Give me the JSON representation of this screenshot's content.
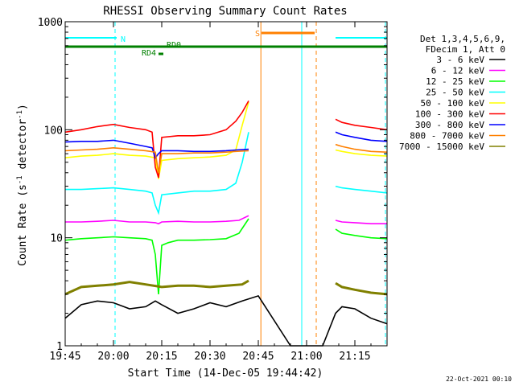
{
  "chart_data": {
    "type": "line",
    "title": "RHESSI Observing Summary Count Rates",
    "xlabel": "Start Time (14-Dec-05 19:44:42)",
    "ylabel_main": "Count Rate (s",
    "ylabel_sup1": "-1",
    "ylabel_mid": " detector",
    "ylabel_sup2": "-1",
    "ylabel_end": ")",
    "x_units": "minutes after 19:45 UT",
    "xlim": [
      0,
      100
    ],
    "ylim": [
      1,
      1000
    ],
    "yscale": "log",
    "x_ticks": [
      {
        "t": 0,
        "label": "19:45"
      },
      {
        "t": 15,
        "label": "20:00"
      },
      {
        "t": 30,
        "label": "20:15"
      },
      {
        "t": 45,
        "label": "20:30"
      },
      {
        "t": 60,
        "label": "20:45"
      },
      {
        "t": 75,
        "label": "21:00"
      },
      {
        "t": 90,
        "label": "21:15"
      }
    ],
    "y_ticks": [
      {
        "v": 1,
        "label": "1"
      },
      {
        "v": 10,
        "label": "10"
      },
      {
        "v": 100,
        "label": "100"
      },
      {
        "v": 1000,
        "label": "1000"
      }
    ],
    "legend_header": [
      "Det 1,3,4,5,6,9,",
      "FDecim 1, Att 0"
    ],
    "legend_position": "right",
    "series": [
      {
        "name": "3 - 6 keV",
        "color": "#000000",
        "values": [
          [
            0,
            1.8
          ],
          [
            5,
            2.4
          ],
          [
            10,
            2.6
          ],
          [
            15,
            2.5
          ],
          [
            20,
            2.2
          ],
          [
            25,
            2.3
          ],
          [
            28,
            2.6
          ],
          [
            30,
            2.4
          ],
          [
            35,
            2.0
          ],
          [
            40,
            2.2
          ],
          [
            45,
            2.5
          ],
          [
            50,
            2.3
          ],
          [
            55,
            2.6
          ],
          [
            60,
            2.9
          ],
          [
            70,
            1.0
          ],
          [
            80,
            1.0
          ],
          [
            84,
            2.0
          ],
          [
            86,
            2.3
          ],
          [
            90,
            2.2
          ],
          [
            95,
            1.8
          ],
          [
            100,
            1.6
          ]
        ]
      },
      {
        "name": "6 - 12 keV",
        "color": "#ff00ff",
        "values": [
          [
            0,
            14
          ],
          [
            5,
            14
          ],
          [
            10,
            14.2
          ],
          [
            15,
            14.5
          ],
          [
            20,
            14
          ],
          [
            25,
            14
          ],
          [
            28,
            13.8
          ],
          [
            29,
            13.5
          ],
          [
            30,
            14
          ],
          [
            35,
            14.2
          ],
          [
            40,
            14
          ],
          [
            45,
            14
          ],
          [
            50,
            14.2
          ],
          [
            54,
            14.5
          ],
          [
            57,
            16
          ],
          [
            84,
            14.5
          ],
          [
            86,
            14
          ],
          [
            90,
            13.8
          ],
          [
            95,
            13.5
          ],
          [
            100,
            13.5
          ]
        ]
      },
      {
        "name": "12 - 25 keV",
        "color": "#00ff00",
        "values": [
          [
            0,
            9.5
          ],
          [
            5,
            9.8
          ],
          [
            10,
            10
          ],
          [
            15,
            10.2
          ],
          [
            20,
            10
          ],
          [
            25,
            9.8
          ],
          [
            27,
            9.5
          ],
          [
            28,
            7
          ],
          [
            29,
            3
          ],
          [
            30,
            8.5
          ],
          [
            32,
            9
          ],
          [
            35,
            9.5
          ],
          [
            40,
            9.5
          ],
          [
            45,
            9.6
          ],
          [
            50,
            9.8
          ],
          [
            54,
            11
          ],
          [
            57,
            15
          ],
          [
            84,
            12
          ],
          [
            86,
            11
          ],
          [
            90,
            10.5
          ],
          [
            95,
            10
          ],
          [
            100,
            9.8
          ]
        ]
      },
      {
        "name": "25 - 50 keV",
        "color": "#00ffff",
        "values": [
          [
            0,
            28
          ],
          [
            5,
            28
          ],
          [
            10,
            28.5
          ],
          [
            15,
            29
          ],
          [
            20,
            28
          ],
          [
            25,
            27
          ],
          [
            27,
            26
          ],
          [
            28,
            20
          ],
          [
            29,
            17
          ],
          [
            30,
            25
          ],
          [
            35,
            26
          ],
          [
            40,
            27
          ],
          [
            45,
            27
          ],
          [
            50,
            28
          ],
          [
            53,
            32
          ],
          [
            55,
            50
          ],
          [
            57,
            95
          ],
          [
            84,
            30
          ],
          [
            86,
            29
          ],
          [
            90,
            28
          ],
          [
            95,
            27
          ],
          [
            100,
            26
          ]
        ]
      },
      {
        "name": "50 - 100 keV",
        "color": "#ffff00",
        "values": [
          [
            0,
            55
          ],
          [
            5,
            57
          ],
          [
            10,
            58
          ],
          [
            15,
            60
          ],
          [
            20,
            58
          ],
          [
            25,
            57
          ],
          [
            28,
            55
          ],
          [
            29,
            35
          ],
          [
            30,
            52
          ],
          [
            35,
            54
          ],
          [
            40,
            55
          ],
          [
            45,
            56
          ],
          [
            50,
            58
          ],
          [
            53,
            65
          ],
          [
            55,
            110
          ],
          [
            57,
            180
          ],
          [
            84,
            65
          ],
          [
            86,
            63
          ],
          [
            90,
            60
          ],
          [
            95,
            58
          ],
          [
            100,
            57
          ]
        ]
      },
      {
        "name": "100 - 300 keV",
        "color": "#ff0000",
        "values": [
          [
            0,
            95
          ],
          [
            5,
            100
          ],
          [
            10,
            107
          ],
          [
            15,
            112
          ],
          [
            20,
            105
          ],
          [
            25,
            100
          ],
          [
            27,
            95
          ],
          [
            28,
            45
          ],
          [
            29,
            36
          ],
          [
            30,
            85
          ],
          [
            35,
            88
          ],
          [
            40,
            88
          ],
          [
            45,
            90
          ],
          [
            50,
            100
          ],
          [
            53,
            120
          ],
          [
            55,
            145
          ],
          [
            57,
            185
          ],
          [
            84,
            125
          ],
          [
            86,
            117
          ],
          [
            90,
            110
          ],
          [
            95,
            105
          ],
          [
            100,
            100
          ]
        ]
      },
      {
        "name": "300 - 800 keV",
        "color": "#0000ff",
        "values": [
          [
            0,
            77
          ],
          [
            5,
            78
          ],
          [
            10,
            78
          ],
          [
            15,
            80
          ],
          [
            20,
            75
          ],
          [
            25,
            70
          ],
          [
            27,
            68
          ],
          [
            28,
            55
          ],
          [
            29,
            60
          ],
          [
            30,
            64
          ],
          [
            35,
            64
          ],
          [
            40,
            63
          ],
          [
            45,
            63
          ],
          [
            50,
            64
          ],
          [
            53,
            65
          ],
          [
            57,
            66
          ],
          [
            84,
            95
          ],
          [
            86,
            90
          ],
          [
            90,
            85
          ],
          [
            95,
            80
          ],
          [
            100,
            78
          ]
        ]
      },
      {
        "name": "800 - 7000 keV",
        "color": "#ff8000",
        "values": [
          [
            0,
            64
          ],
          [
            5,
            65
          ],
          [
            10,
            66
          ],
          [
            15,
            68
          ],
          [
            20,
            66
          ],
          [
            25,
            64
          ],
          [
            28,
            62
          ],
          [
            29,
            40
          ],
          [
            30,
            60
          ],
          [
            35,
            60
          ],
          [
            40,
            61
          ],
          [
            45,
            61
          ],
          [
            50,
            62
          ],
          [
            53,
            63
          ],
          [
            57,
            64
          ],
          [
            84,
            73
          ],
          [
            86,
            70
          ],
          [
            90,
            66
          ],
          [
            95,
            63
          ],
          [
            100,
            62
          ]
        ]
      },
      {
        "name": "7000 - 15000 keV",
        "color": "#808000",
        "values": [
          [
            0,
            3.0
          ],
          [
            5,
            3.5
          ],
          [
            10,
            3.6
          ],
          [
            15,
            3.7
          ],
          [
            20,
            3.9
          ],
          [
            25,
            3.7
          ],
          [
            30,
            3.5
          ],
          [
            35,
            3.6
          ],
          [
            40,
            3.6
          ],
          [
            45,
            3.5
          ],
          [
            50,
            3.6
          ],
          [
            55,
            3.7
          ],
          [
            57,
            4.0
          ],
          [
            84,
            3.8
          ],
          [
            86,
            3.5
          ],
          [
            90,
            3.3
          ],
          [
            95,
            3.1
          ],
          [
            100,
            3.0
          ]
        ]
      }
    ],
    "flag_bars": [
      {
        "label": "N",
        "color": "#00ffff",
        "segments": [
          [
            0,
            16
          ],
          [
            84,
            100
          ]
        ]
      },
      {
        "label": "S",
        "color": "#ff8000",
        "segments": [
          [
            61,
            77.5
          ]
        ]
      },
      {
        "label": "RD0",
        "color": "#008000",
        "segments": [
          [
            0,
            100
          ]
        ]
      },
      {
        "label": "RD4",
        "color": "#008000",
        "segments": [
          [
            29,
            30.5
          ]
        ]
      }
    ],
    "vertical_markers": [
      {
        "t": 0,
        "color": "#00ffff",
        "style": "solid"
      },
      {
        "t": 15.5,
        "color": "#00ffff",
        "style": "dashed"
      },
      {
        "t": 60.8,
        "color": "#ff8000",
        "style": "solid"
      },
      {
        "t": 73.5,
        "color": "#00ffff",
        "style": "solid"
      },
      {
        "t": 78.0,
        "color": "#ff8000",
        "style": "dashed"
      },
      {
        "t": 99.5,
        "color": "#00ffff",
        "style": "dashed"
      }
    ]
  },
  "footer_date": "22-Oct-2021 00:10"
}
